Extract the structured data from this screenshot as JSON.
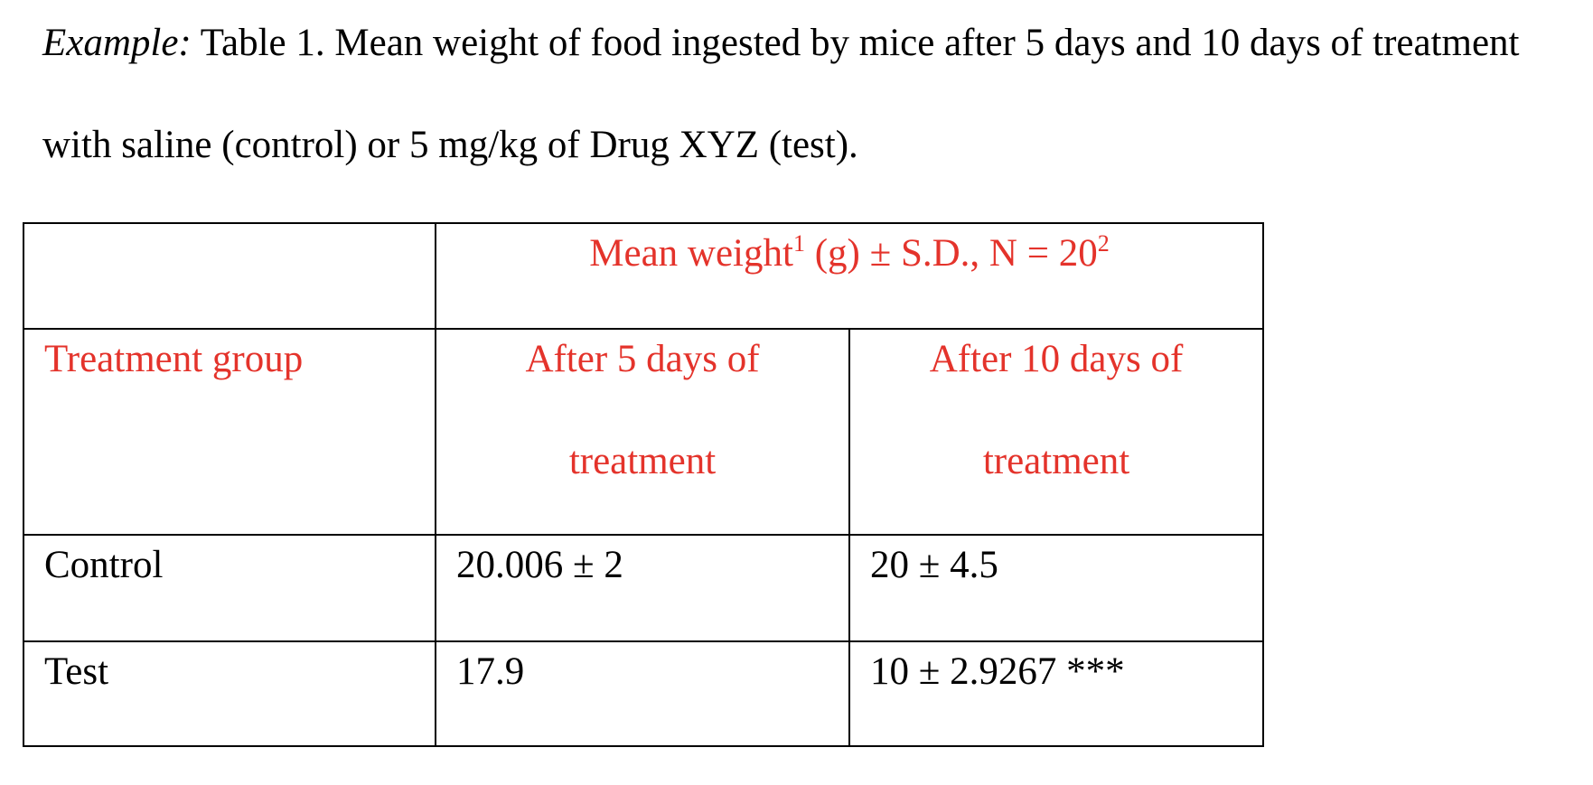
{
  "caption": {
    "label": "Example:",
    "text": "Table 1. Mean weight of food ingested by mice after 5 days and 10 days of treatment with saline (control) or 5 mg/kg of Drug XYZ (test)."
  },
  "table": {
    "spanning_header": {
      "text_1": "Mean weight",
      "footnote_1": "1",
      "text_2": "(g) ± S.D., N = 20",
      "footnote_2": "2"
    },
    "columns": [
      "Treatment group",
      "After 5 days of treatment",
      "After 10 days of treatment"
    ],
    "rows": [
      [
        "Control",
        "20.006 ± 2",
        "20 ± 4.5"
      ],
      [
        "Test",
        "17.9",
        "10 ± 2.9267 ***"
      ]
    ]
  }
}
